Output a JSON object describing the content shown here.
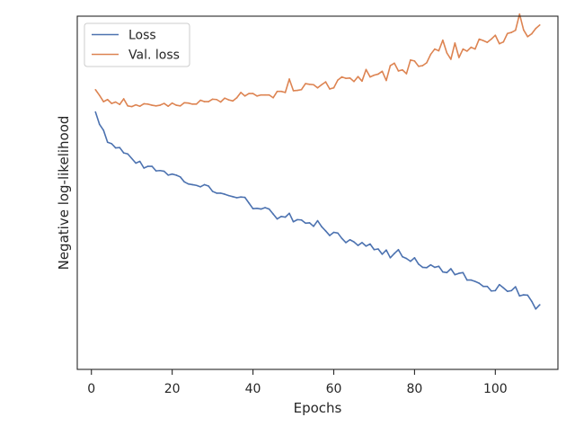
{
  "chart_data": {
    "type": "line",
    "title": "",
    "xlabel": "Epochs",
    "ylabel": "Negative log-likelihood",
    "xlim": [
      -3.5,
      115.5
    ],
    "ylim": [
      0,
      1
    ],
    "x_ticks": [
      0,
      20,
      40,
      60,
      80,
      100
    ],
    "y_ticks_shown": false,
    "grid": false,
    "legend_position": "top-left",
    "series": [
      {
        "name": "Loss",
        "color": "#4c72b0",
        "x": [
          1,
          2,
          3,
          4,
          5,
          6,
          7,
          8,
          9,
          10,
          11,
          12,
          13,
          14,
          15,
          16,
          17,
          18,
          19,
          20,
          21,
          22,
          23,
          24,
          25,
          26,
          27,
          28,
          29,
          30,
          31,
          32,
          33,
          34,
          35,
          36,
          37,
          38,
          39,
          40,
          41,
          42,
          43,
          44,
          45,
          46,
          47,
          48,
          49,
          50,
          51,
          52,
          53,
          54,
          55,
          56,
          57,
          58,
          59,
          60,
          61,
          62,
          63,
          64,
          65,
          66,
          67,
          68,
          69,
          70,
          71,
          72,
          73,
          74,
          75,
          76,
          77,
          78,
          79,
          80,
          81,
          82,
          83,
          84,
          85,
          86,
          87,
          88,
          89,
          90,
          91,
          92,
          93,
          94,
          95,
          96,
          97,
          98,
          99,
          100,
          101,
          102,
          103,
          104,
          105,
          106,
          107,
          108,
          109,
          110,
          111
        ],
        "y": [
          0.729,
          0.694,
          0.677,
          0.643,
          0.639,
          0.627,
          0.628,
          0.613,
          0.61,
          0.597,
          0.584,
          0.589,
          0.57,
          0.575,
          0.575,
          0.562,
          0.563,
          0.561,
          0.55,
          0.553,
          0.55,
          0.545,
          0.531,
          0.525,
          0.523,
          0.521,
          0.517,
          0.523,
          0.519,
          0.504,
          0.499,
          0.499,
          0.496,
          0.492,
          0.489,
          0.486,
          0.488,
          0.487,
          0.471,
          0.455,
          0.456,
          0.454,
          0.458,
          0.454,
          0.44,
          0.426,
          0.433,
          0.431,
          0.442,
          0.418,
          0.424,
          0.423,
          0.414,
          0.415,
          0.405,
          0.421,
          0.404,
          0.392,
          0.379,
          0.388,
          0.386,
          0.371,
          0.359,
          0.367,
          0.361,
          0.351,
          0.359,
          0.349,
          0.355,
          0.339,
          0.341,
          0.326,
          0.338,
          0.316,
          0.328,
          0.339,
          0.319,
          0.314,
          0.306,
          0.316,
          0.298,
          0.289,
          0.288,
          0.296,
          0.289,
          0.292,
          0.276,
          0.274,
          0.285,
          0.268,
          0.272,
          0.274,
          0.253,
          0.253,
          0.249,
          0.244,
          0.235,
          0.235,
          0.222,
          0.223,
          0.24,
          0.231,
          0.221,
          0.223,
          0.234,
          0.208,
          0.211,
          0.21,
          0.193,
          0.171,
          0.183
        ]
      },
      {
        "name": "Val. loss",
        "color": "#dd8452",
        "x": [
          1,
          2,
          3,
          4,
          5,
          6,
          7,
          8,
          9,
          10,
          11,
          12,
          13,
          14,
          15,
          16,
          17,
          18,
          19,
          20,
          21,
          22,
          23,
          24,
          25,
          26,
          27,
          28,
          29,
          30,
          31,
          32,
          33,
          34,
          35,
          36,
          37,
          38,
          39,
          40,
          41,
          42,
          43,
          44,
          45,
          46,
          47,
          48,
          49,
          50,
          51,
          52,
          53,
          54,
          55,
          56,
          57,
          58,
          59,
          60,
          61,
          62,
          63,
          64,
          65,
          66,
          67,
          68,
          69,
          70,
          71,
          72,
          73,
          74,
          75,
          76,
          77,
          78,
          79,
          80,
          81,
          82,
          83,
          84,
          85,
          86,
          87,
          88,
          89,
          90,
          91,
          92,
          93,
          94,
          95,
          96,
          97,
          98,
          99,
          100,
          101,
          102,
          103,
          104,
          105,
          106,
          107,
          108,
          109,
          110,
          111
        ],
        "y": [
          0.792,
          0.776,
          0.758,
          0.764,
          0.753,
          0.757,
          0.75,
          0.766,
          0.746,
          0.744,
          0.749,
          0.745,
          0.752,
          0.751,
          0.748,
          0.746,
          0.748,
          0.753,
          0.745,
          0.754,
          0.748,
          0.746,
          0.755,
          0.754,
          0.751,
          0.751,
          0.762,
          0.758,
          0.758,
          0.765,
          0.764,
          0.757,
          0.768,
          0.763,
          0.76,
          0.769,
          0.784,
          0.774,
          0.781,
          0.781,
          0.774,
          0.777,
          0.777,
          0.777,
          0.769,
          0.787,
          0.787,
          0.784,
          0.822,
          0.789,
          0.79,
          0.792,
          0.809,
          0.807,
          0.806,
          0.797,
          0.806,
          0.814,
          0.794,
          0.797,
          0.819,
          0.828,
          0.824,
          0.825,
          0.815,
          0.829,
          0.816,
          0.849,
          0.828,
          0.833,
          0.836,
          0.844,
          0.818,
          0.86,
          0.867,
          0.845,
          0.848,
          0.837,
          0.876,
          0.873,
          0.858,
          0.86,
          0.868,
          0.892,
          0.907,
          0.902,
          0.932,
          0.896,
          0.878,
          0.924,
          0.883,
          0.907,
          0.901,
          0.912,
          0.907,
          0.935,
          0.931,
          0.926,
          0.935,
          0.946,
          0.922,
          0.927,
          0.951,
          0.954,
          0.96,
          1.006,
          0.961,
          0.942,
          0.95,
          0.965,
          0.975
        ]
      }
    ]
  }
}
